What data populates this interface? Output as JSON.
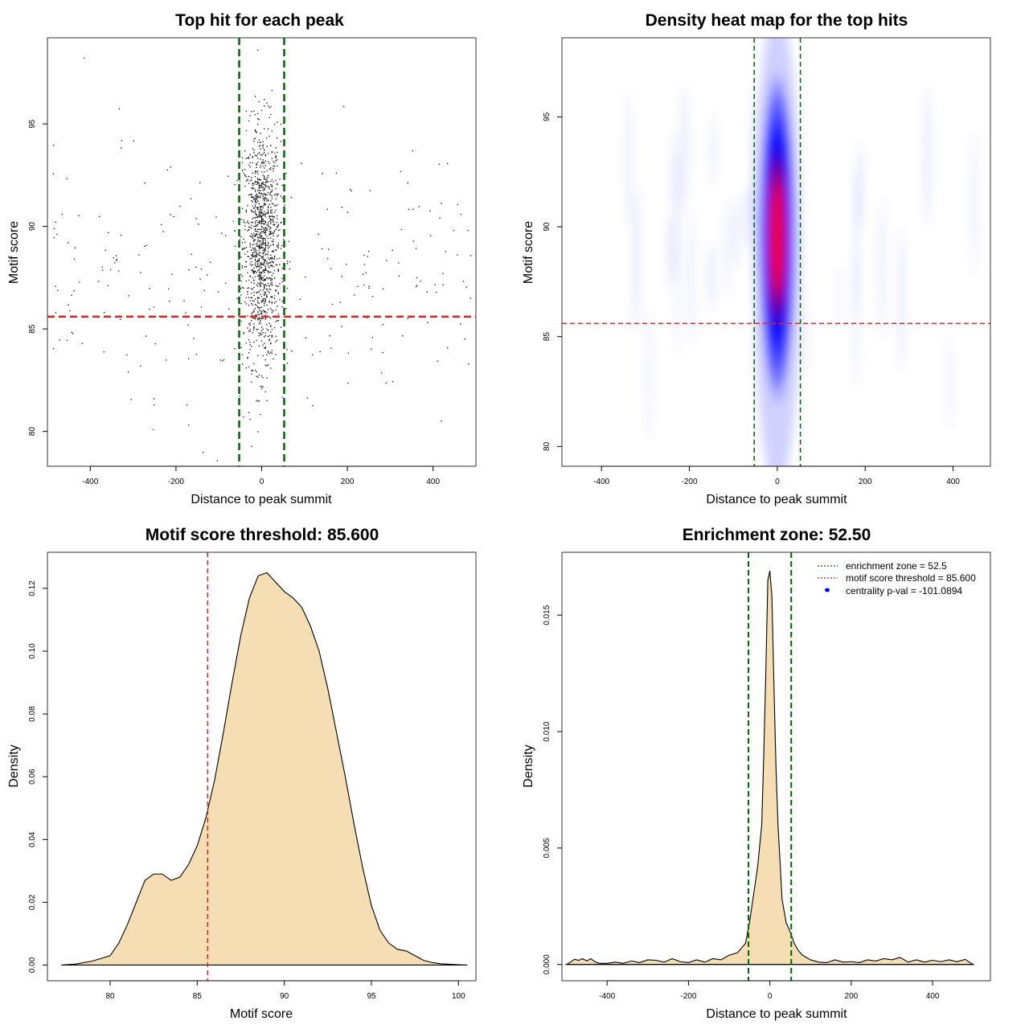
{
  "colors": {
    "green_line": "#006400",
    "red_line": "#dd2222",
    "fill": "#f5deb3",
    "point": "#000000",
    "heat_low": "#ffffff",
    "heat_mid": "#0000ff",
    "heat_high": "#ff0000"
  },
  "chart_data": [
    {
      "id": "scatter",
      "type": "scatter",
      "title": "Top hit for each peak",
      "xlabel": "Distance to peak summit",
      "ylabel": "Motif score",
      "xlim": [
        -500,
        500
      ],
      "ylim": [
        78.3,
        99.2
      ],
      "xticks": [
        -400,
        -200,
        0,
        200,
        400
      ],
      "yticks": [
        80,
        85,
        90,
        95
      ],
      "vlines": [
        -52.5,
        52.5
      ],
      "hline": 85.6,
      "central_cluster": {
        "n": 1250,
        "x_sd": 22,
        "y_mean": 89.1,
        "y_sd": 2.9
      },
      "background": {
        "n": 230,
        "x_range": [
          -490,
          490
        ],
        "y_mean": 88.0,
        "y_sd": 3.0
      }
    },
    {
      "id": "heatmap",
      "type": "heatmap",
      "title": "Density heat map for the top hits",
      "xlabel": "Distance to peak summit",
      "ylabel": "Motif score",
      "xlim": [
        -490,
        485
      ],
      "ylim": [
        79.1,
        98.6
      ],
      "xticks": [
        -400,
        -200,
        0,
        200,
        400
      ],
      "yticks": [
        80,
        85,
        90,
        95
      ],
      "vlines": [
        -52.5,
        52.5
      ],
      "hline": 85.6,
      "peak": {
        "x": 0,
        "y": 89.5,
        "x_sd": 12,
        "y_sd": 2.6
      }
    },
    {
      "id": "score_density",
      "type": "area",
      "title": "Motif score threshold: 85.600",
      "xlabel": "Motif score",
      "ylabel": "Density",
      "xlim": [
        76.4,
        101.0
      ],
      "ylim": [
        -0.005,
        0.1315
      ],
      "xticks": [
        80,
        85,
        90,
        95,
        100
      ],
      "yticks": [
        0.0,
        0.02,
        0.04,
        0.06,
        0.08,
        0.1,
        0.12
      ],
      "ytick_labels": [
        "0.00",
        "0.02",
        "0.04",
        "0.06",
        "0.08",
        "0.10",
        "0.12"
      ],
      "vline": 85.6,
      "x": [
        77.2,
        78.0,
        79.0,
        80.0,
        80.5,
        81.0,
        81.5,
        82.0,
        82.5,
        83.0,
        83.5,
        84.0,
        84.5,
        85.0,
        85.5,
        86.0,
        86.5,
        87.0,
        87.5,
        88.0,
        88.5,
        89.0,
        89.5,
        90.0,
        90.5,
        91.0,
        91.5,
        92.0,
        92.5,
        93.0,
        93.5,
        94.0,
        94.5,
        95.0,
        95.5,
        96.0,
        96.5,
        97.0,
        97.5,
        98.0,
        98.5,
        99.0,
        100.0,
        100.5
      ],
      "y": [
        0.0,
        0.0003,
        0.0013,
        0.003,
        0.007,
        0.013,
        0.02,
        0.027,
        0.029,
        0.029,
        0.027,
        0.028,
        0.032,
        0.038,
        0.047,
        0.059,
        0.074,
        0.09,
        0.105,
        0.117,
        0.124,
        0.125,
        0.122,
        0.119,
        0.117,
        0.114,
        0.108,
        0.1,
        0.088,
        0.074,
        0.06,
        0.045,
        0.031,
        0.019,
        0.011,
        0.007,
        0.005,
        0.0045,
        0.003,
        0.0015,
        0.0008,
        0.0004,
        0.0001,
        0.0
      ]
    },
    {
      "id": "distance_density",
      "type": "area",
      "title": "Enrichment zone: 52.50",
      "xlabel": "Distance to peak summit",
      "ylabel": "Density",
      "xlim": [
        -511,
        542
      ],
      "ylim": [
        -0.0007,
        0.0177
      ],
      "xticks": [
        -400,
        -200,
        0,
        200,
        400
      ],
      "yticks": [
        0.0,
        0.005,
        0.01,
        0.015
      ],
      "ytick_labels": [
        "0.000",
        "0.005",
        "0.010",
        "0.015"
      ],
      "vlines": [
        -52.5,
        52.5
      ],
      "x": [
        -500,
        -490,
        -480,
        -470,
        -460,
        -450,
        -440,
        -430,
        -420,
        -400,
        -380,
        -360,
        -340,
        -320,
        -300,
        -280,
        -260,
        -240,
        -220,
        -200,
        -180,
        -160,
        -140,
        -120,
        -100,
        -80,
        -70,
        -60,
        -50,
        -40,
        -30,
        -20,
        -15,
        -10,
        -5,
        0,
        5,
        10,
        15,
        20,
        30,
        40,
        50,
        60,
        70,
        80,
        100,
        120,
        140,
        160,
        180,
        200,
        220,
        240,
        260,
        280,
        300,
        320,
        340,
        360,
        380,
        400,
        420,
        440,
        460,
        480,
        490,
        500
      ],
      "y": [
        0.0,
        0.0001,
        0.00022,
        0.00018,
        0.00025,
        0.00015,
        0.00025,
        0.00012,
        5e-05,
        5e-05,
        0.0001,
        5e-05,
        0.00015,
        8e-05,
        0.0002,
        0.00018,
        0.0001,
        0.00025,
        0.00012,
        8e-05,
        0.0002,
        0.0001,
        0.00025,
        0.0002,
        0.0004,
        0.0005,
        0.0007,
        0.0009,
        0.0018,
        0.003,
        0.0042,
        0.006,
        0.009,
        0.0125,
        0.0165,
        0.0169,
        0.0158,
        0.012,
        0.0085,
        0.006,
        0.0028,
        0.0018,
        0.0014,
        0.0009,
        0.0006,
        0.0004,
        0.0002,
        0.0001,
        8e-05,
        0.0002,
        0.0001,
        0.00012,
        8e-05,
        0.0002,
        0.00015,
        0.00025,
        0.0002,
        0.0003,
        0.0001,
        0.0002,
        0.0001,
        0.00018,
        0.00012,
        0.0002,
        0.00012,
        0.00022,
        0.0001,
        0.0
      ]
    }
  ],
  "legend": {
    "enrichment": "enrichment zone = 52.5",
    "threshold": "motif score threshold = 85.600",
    "centrality": "centrality p-val = -101.0894"
  }
}
